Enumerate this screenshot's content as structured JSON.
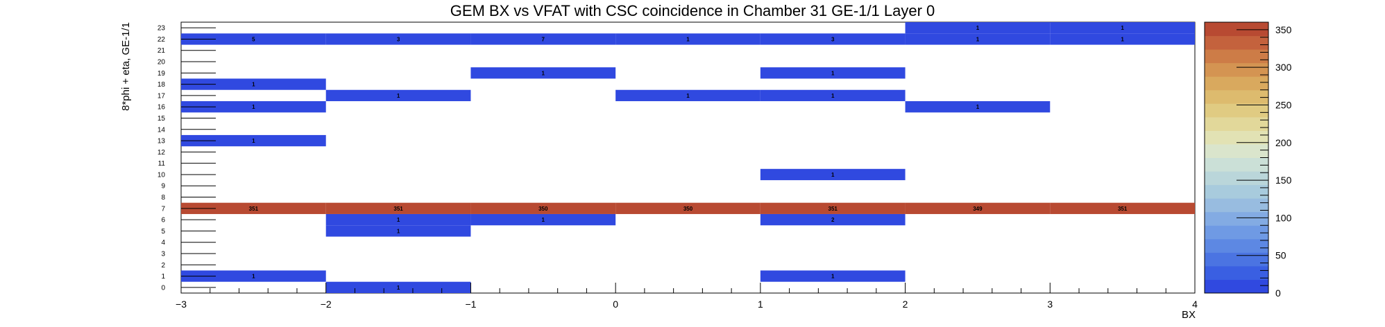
{
  "chart_data": {
    "type": "heatmap",
    "title": "GEM BX vs VFAT with CSC coincidence in Chamber 31 GE-1/1 Layer 0",
    "xlabel": "BX",
    "ylabel": "8*phi + eta, GE-1/1",
    "xlim": [
      -3,
      4
    ],
    "ylim": [
      0,
      24
    ],
    "x_bin_edges": [
      -3,
      -2,
      -1,
      0,
      1,
      2,
      3,
      4
    ],
    "x_tick_labels": [
      "−3",
      "−2",
      "−1",
      "0",
      "1",
      "2",
      "3",
      "4"
    ],
    "y_tick_labels": [
      "0",
      "1",
      "2",
      "3",
      "4",
      "5",
      "6",
      "7",
      "8",
      "9",
      "10",
      "11",
      "12",
      "13",
      "14",
      "15",
      "16",
      "17",
      "18",
      "19",
      "20",
      "21",
      "22",
      "23"
    ],
    "z_range": [
      0,
      360
    ],
    "colorbar_ticks": [
      "0",
      "50",
      "100",
      "150",
      "200",
      "250",
      "300",
      "350"
    ],
    "grid": false,
    "cells": [
      {
        "x": -2.5,
        "y": 1,
        "value": 1
      },
      {
        "x": 1.5,
        "y": 1,
        "value": 1
      },
      {
        "x": -1.5,
        "y": 0,
        "value": 1
      },
      {
        "x": -1.5,
        "y": 5,
        "value": 1
      },
      {
        "x": -1.5,
        "y": 6,
        "value": 1
      },
      {
        "x": -0.5,
        "y": 6,
        "value": 1
      },
      {
        "x": 1.5,
        "y": 6,
        "value": 2
      },
      {
        "x": -2.5,
        "y": 7,
        "value": 351
      },
      {
        "x": -1.5,
        "y": 7,
        "value": 351
      },
      {
        "x": -0.5,
        "y": 7,
        "value": 350
      },
      {
        "x": 0.5,
        "y": 7,
        "value": 350
      },
      {
        "x": 1.5,
        "y": 7,
        "value": 351
      },
      {
        "x": 2.5,
        "y": 7,
        "value": 349
      },
      {
        "x": 3.5,
        "y": 7,
        "value": 351
      },
      {
        "x": 1.5,
        "y": 10,
        "value": 1
      },
      {
        "x": -2.5,
        "y": 13,
        "value": 1
      },
      {
        "x": -2.5,
        "y": 16,
        "value": 1
      },
      {
        "x": 2.5,
        "y": 16,
        "value": 1
      },
      {
        "x": -1.5,
        "y": 17,
        "value": 1
      },
      {
        "x": 0.5,
        "y": 17,
        "value": 1
      },
      {
        "x": 1.5,
        "y": 17,
        "value": 1
      },
      {
        "x": -2.5,
        "y": 18,
        "value": 1
      },
      {
        "x": -0.5,
        "y": 19,
        "value": 1
      },
      {
        "x": 1.5,
        "y": 19,
        "value": 1
      },
      {
        "x": -2.5,
        "y": 22,
        "value": 5
      },
      {
        "x": -1.5,
        "y": 22,
        "value": 3
      },
      {
        "x": -0.5,
        "y": 22,
        "value": 7
      },
      {
        "x": 0.5,
        "y": 22,
        "value": 1
      },
      {
        "x": 1.5,
        "y": 22,
        "value": 3
      },
      {
        "x": 2.5,
        "y": 22,
        "value": 1
      },
      {
        "x": 3.5,
        "y": 22,
        "value": 1
      },
      {
        "x": 2.5,
        "y": 23,
        "value": 1
      },
      {
        "x": 3.5,
        "y": 23,
        "value": 1
      }
    ],
    "palette": [
      "#3049e0",
      "#3a5fe2",
      "#4b74e2",
      "#5d88e3",
      "#6f9ae4",
      "#83abe3",
      "#98bce0",
      "#a8cbdd",
      "#bad6da",
      "#cbe0d7",
      "#dae5cc",
      "#e2e2b4",
      "#e2d89a",
      "#e0cb82",
      "#ddbb6e",
      "#d9a95e",
      "#d49452",
      "#cd7c47",
      "#c4623d",
      "#b84a32"
    ]
  }
}
